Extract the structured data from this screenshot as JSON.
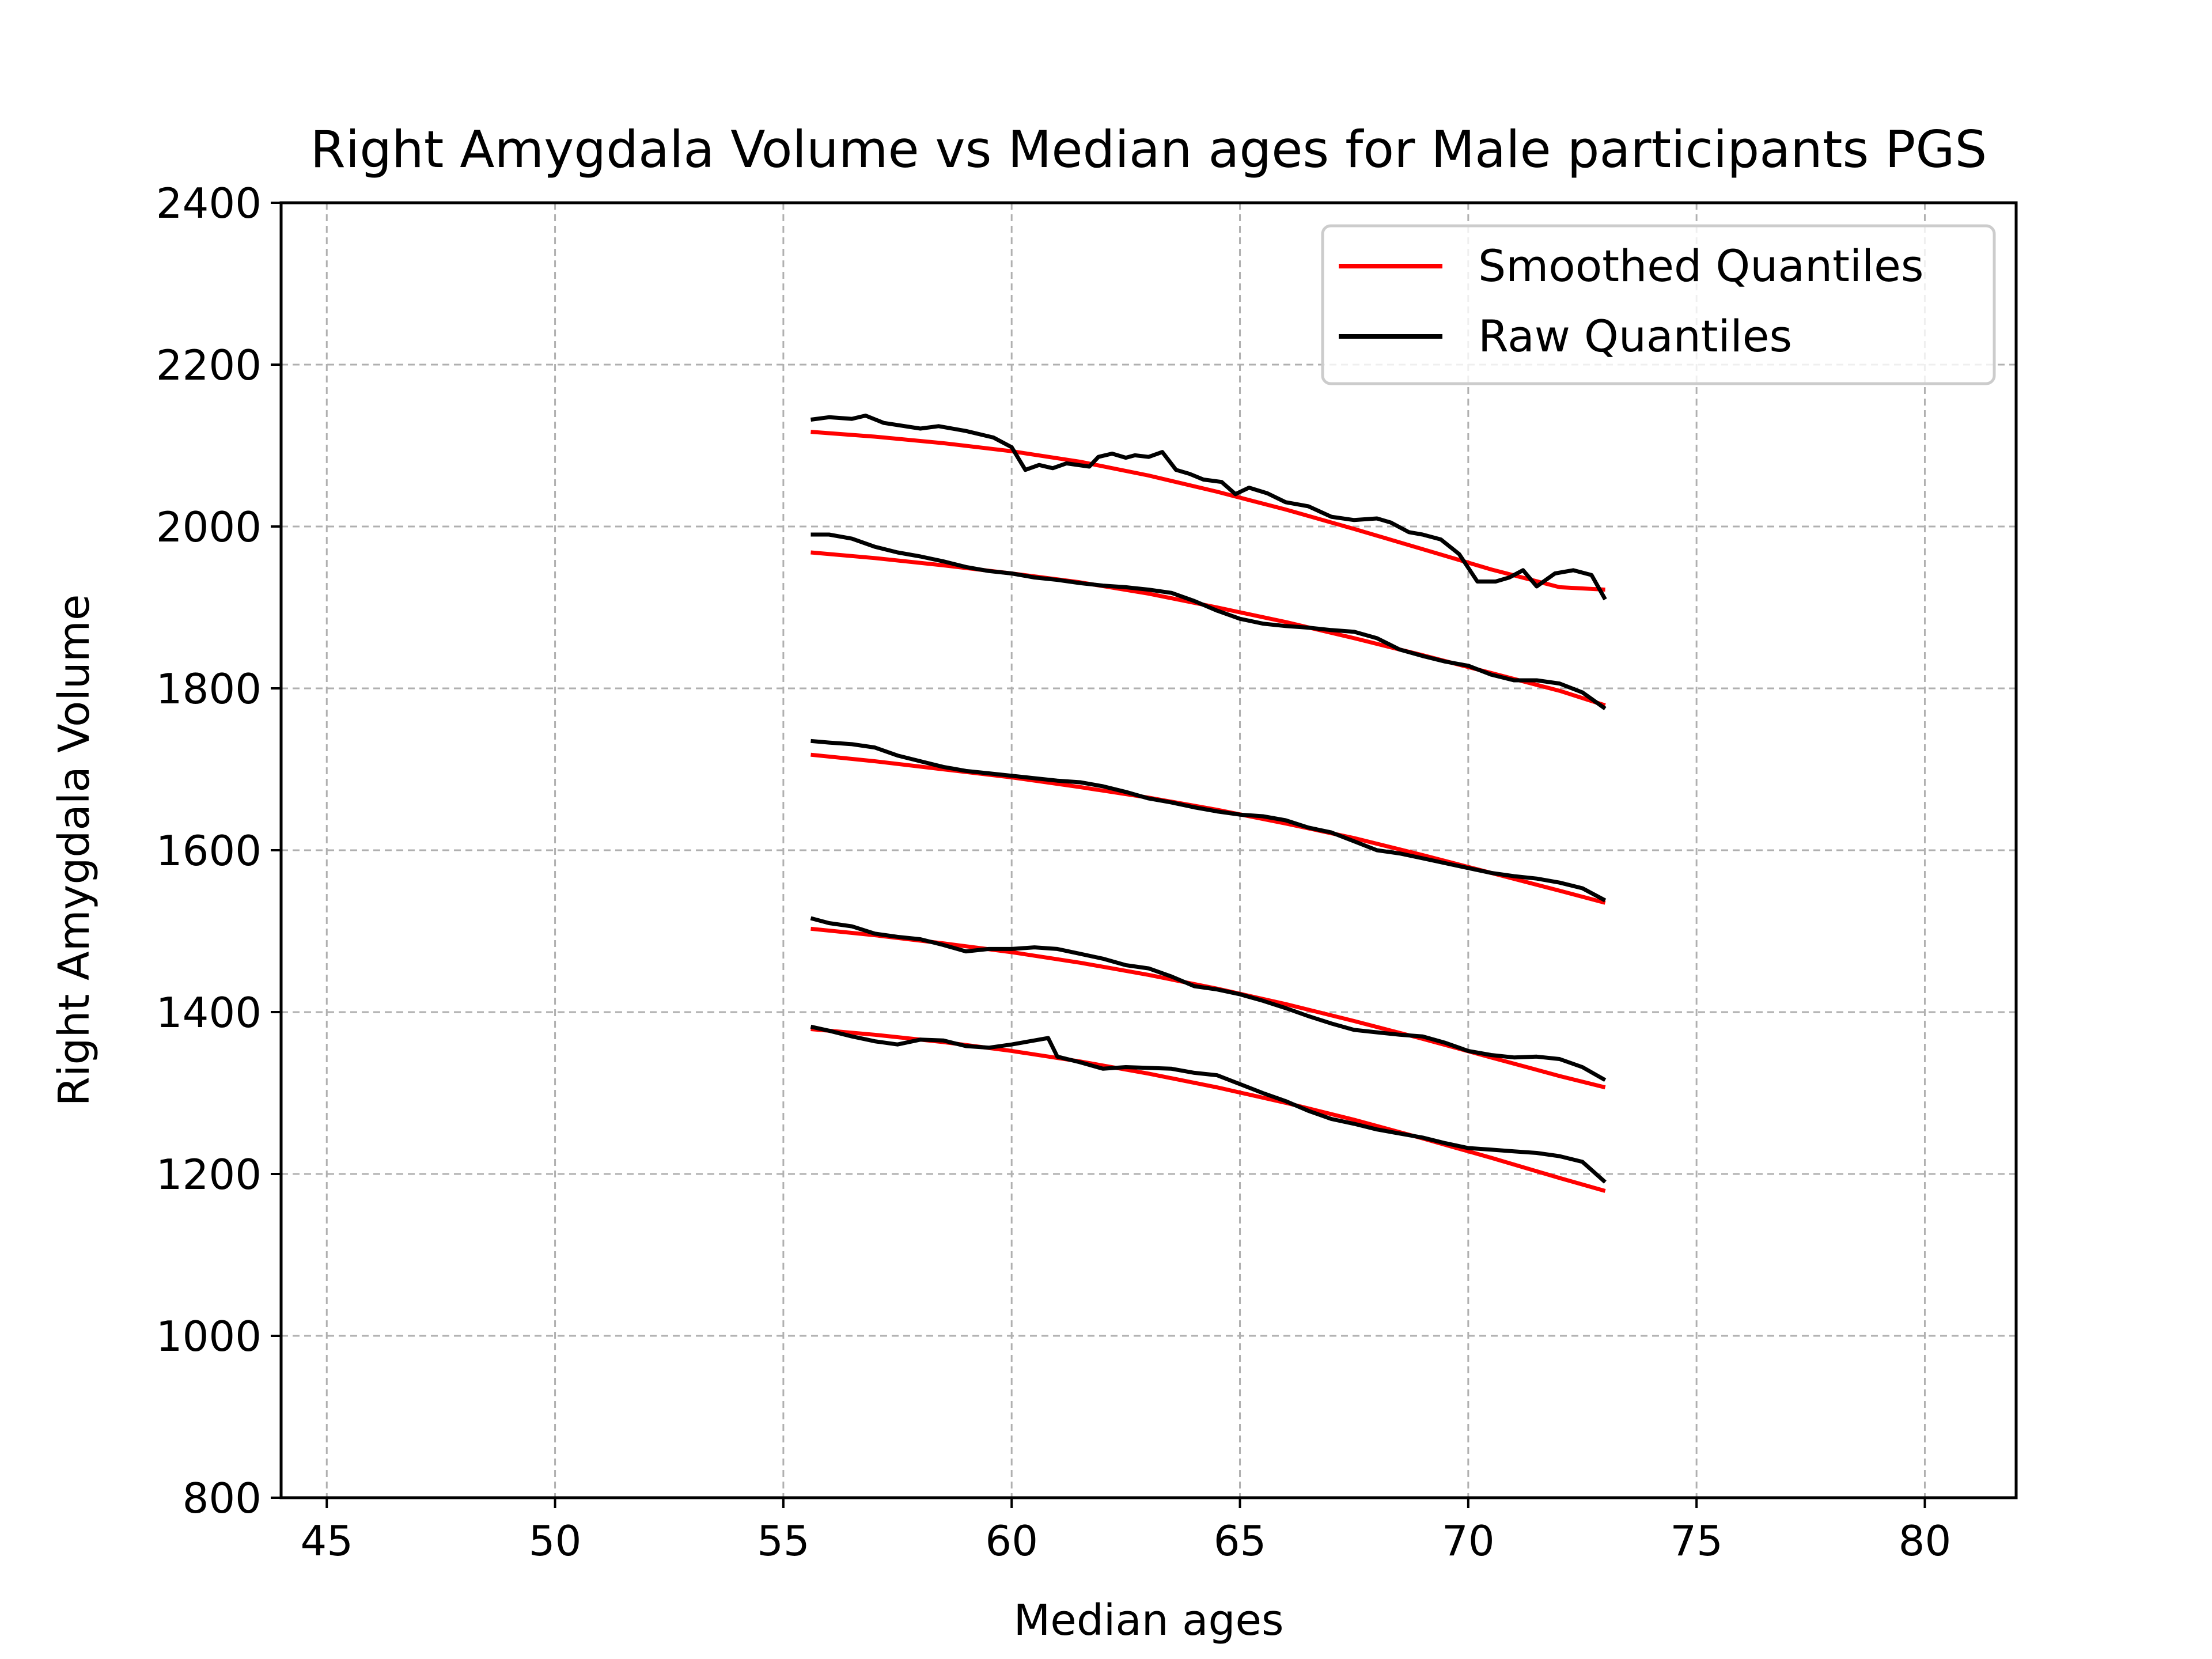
{
  "chart_data": {
    "type": "line",
    "title": "Right Amygdala Volume vs Median ages for Male participants  PGS",
    "xlabel": "Median ages",
    "ylabel": "Right Amygdala Volume",
    "xlim": [
      44,
      82
    ],
    "ylim": [
      800,
      2400
    ],
    "xticks": [
      "45",
      "50",
      "55",
      "60",
      "65",
      "70",
      "75",
      "80"
    ],
    "yticks": [
      "800",
      "1000",
      "1200",
      "1400",
      "1600",
      "1800",
      "2000",
      "2200",
      "2400"
    ],
    "grid": true,
    "legend": {
      "placement": "top-right",
      "entries": [
        "Smoothed Quantiles",
        "Raw Quantiles"
      ]
    },
    "colors": {
      "smoothed": "#ff0000",
      "raw": "#000000",
      "grid": "#b0b0b0"
    },
    "series": [
      {
        "group": "Smoothed Quantiles",
        "x": [
          55.6,
          57,
          58.5,
          60,
          61.5,
          63,
          64.5,
          66,
          67.5,
          69,
          70.5,
          72,
          73
        ],
        "values": [
          2117,
          2111,
          2103,
          2093,
          2080,
          2063,
          2043,
          2021,
          1997,
          1972,
          1947,
          1925,
          1922
        ]
      },
      {
        "group": "Smoothed Quantiles",
        "x": [
          55.6,
          57,
          58.5,
          60,
          61.5,
          63,
          64.5,
          66,
          67.5,
          69,
          70.5,
          72,
          73
        ],
        "values": [
          1968,
          1961,
          1952,
          1942,
          1931,
          1917,
          1900,
          1882,
          1862,
          1841,
          1819,
          1797,
          1779
        ]
      },
      {
        "group": "Smoothed Quantiles",
        "x": [
          55.6,
          57,
          58.5,
          60,
          61.5,
          63,
          64.5,
          66,
          67.5,
          69,
          70.5,
          72,
          73
        ],
        "values": [
          1718,
          1710,
          1700,
          1690,
          1678,
          1665,
          1650,
          1633,
          1615,
          1594,
          1572,
          1550,
          1535
        ]
      },
      {
        "group": "Smoothed Quantiles",
        "x": [
          55.6,
          57,
          58.5,
          60,
          61.5,
          63,
          64.5,
          66,
          67.5,
          69,
          70.5,
          72,
          73
        ],
        "values": [
          1503,
          1495,
          1485,
          1474,
          1461,
          1446,
          1429,
          1410,
          1389,
          1367,
          1344,
          1321,
          1307
        ]
      },
      {
        "group": "Smoothed Quantiles",
        "x": [
          55.6,
          57,
          58.5,
          60,
          61.5,
          63,
          64.5,
          66,
          67.5,
          69,
          70.5,
          72,
          73
        ],
        "values": [
          1379,
          1372,
          1363,
          1352,
          1339,
          1324,
          1307,
          1288,
          1267,
          1244,
          1220,
          1195,
          1179
        ]
      },
      {
        "group": "Raw Quantiles",
        "x": [
          55.6,
          56,
          56.5,
          56.8,
          57.2,
          58,
          58.4,
          59,
          59.6,
          60,
          60.3,
          60.6,
          60.9,
          61.2,
          61.7,
          61.9,
          62.2,
          62.5,
          62.7,
          63,
          63.3,
          63.6,
          63.9,
          64.2,
          64.6,
          64.9,
          65.2,
          65.6,
          66,
          66.5,
          67,
          67.5,
          68,
          68.3,
          68.7,
          69,
          69.4,
          69.8,
          70.2,
          70.6,
          70.9,
          71.2,
          71.5,
          71.9,
          72.3,
          72.7,
          73
        ],
        "values": [
          2132,
          2135,
          2133,
          2137,
          2128,
          2121,
          2124,
          2118,
          2110,
          2098,
          2070,
          2076,
          2072,
          2078,
          2074,
          2086,
          2090,
          2085,
          2088,
          2086,
          2092,
          2070,
          2065,
          2058,
          2055,
          2040,
          2048,
          2041,
          2030,
          2025,
          2012,
          2008,
          2010,
          2005,
          1993,
          1990,
          1984,
          1966,
          1932,
          1932,
          1937,
          1946,
          1926,
          1942,
          1946,
          1940,
          1910
        ]
      },
      {
        "group": "Raw Quantiles",
        "x": [
          55.6,
          56,
          56.5,
          57,
          57.5,
          58,
          58.5,
          59,
          59.5,
          60,
          60.5,
          61,
          61.5,
          62,
          62.5,
          63,
          63.5,
          64,
          64.5,
          65,
          65.5,
          66,
          66.5,
          67,
          67.5,
          68,
          68.5,
          69,
          69.5,
          70,
          70.5,
          71,
          71.5,
          72,
          72.5,
          73
        ],
        "values": [
          1990,
          1990,
          1985,
          1975,
          1968,
          1963,
          1957,
          1950,
          1945,
          1942,
          1937,
          1934,
          1930,
          1927,
          1925,
          1922,
          1918,
          1908,
          1896,
          1886,
          1880,
          1877,
          1875,
          1872,
          1870,
          1862,
          1848,
          1840,
          1833,
          1828,
          1817,
          1810,
          1810,
          1806,
          1795,
          1775
        ]
      },
      {
        "group": "Raw Quantiles",
        "x": [
          55.6,
          56,
          56.5,
          57,
          57.5,
          58,
          58.5,
          59,
          59.5,
          60,
          60.5,
          61,
          61.5,
          62,
          62.5,
          63,
          63.5,
          64,
          64.5,
          65,
          65.5,
          66,
          66.5,
          67,
          67.5,
          68,
          68.5,
          69,
          69.5,
          70,
          70.5,
          71,
          71.5,
          72,
          72.5,
          73
        ],
        "values": [
          1735,
          1733,
          1731,
          1727,
          1717,
          1710,
          1703,
          1698,
          1695,
          1692,
          1689,
          1686,
          1684,
          1679,
          1672,
          1664,
          1659,
          1653,
          1648,
          1644,
          1642,
          1637,
          1628,
          1622,
          1611,
          1600,
          1596,
          1590,
          1584,
          1578,
          1572,
          1568,
          1565,
          1560,
          1553,
          1538
        ]
      },
      {
        "group": "Raw Quantiles",
        "x": [
          55.6,
          56,
          56.5,
          57,
          57.5,
          58,
          58.5,
          59,
          59.5,
          60,
          60.5,
          61,
          61.5,
          62,
          62.5,
          63,
          63.5,
          64,
          64.5,
          65,
          65.5,
          66,
          66.5,
          67,
          67.5,
          68,
          68.5,
          69,
          69.5,
          70,
          70.5,
          71,
          71.5,
          72,
          72.5,
          73
        ],
        "values": [
          1516,
          1510,
          1506,
          1497,
          1493,
          1490,
          1483,
          1475,
          1478,
          1478,
          1480,
          1478,
          1472,
          1466,
          1458,
          1454,
          1444,
          1432,
          1428,
          1422,
          1414,
          1405,
          1395,
          1386,
          1378,
          1375,
          1372,
          1370,
          1362,
          1352,
          1347,
          1344,
          1345,
          1342,
          1332,
          1316
        ]
      },
      {
        "group": "Raw Quantiles",
        "x": [
          55.6,
          56,
          56.5,
          57,
          57.5,
          58,
          58.5,
          59,
          59.5,
          60,
          60.5,
          60.8,
          61,
          61.5,
          62,
          62.5,
          63,
          63.5,
          64,
          64.5,
          65,
          65.5,
          66,
          66.5,
          67,
          67.5,
          68,
          68.5,
          69,
          69.5,
          70,
          70.5,
          71,
          71.5,
          72,
          72.5,
          73
        ],
        "values": [
          1382,
          1377,
          1370,
          1364,
          1360,
          1366,
          1365,
          1358,
          1356,
          1360,
          1365,
          1368,
          1345,
          1338,
          1330,
          1332,
          1331,
          1330,
          1325,
          1322,
          1311,
          1300,
          1290,
          1278,
          1268,
          1262,
          1255,
          1250,
          1245,
          1238,
          1232,
          1230,
          1228,
          1226,
          1222,
          1215,
          1190
        ]
      }
    ]
  }
}
